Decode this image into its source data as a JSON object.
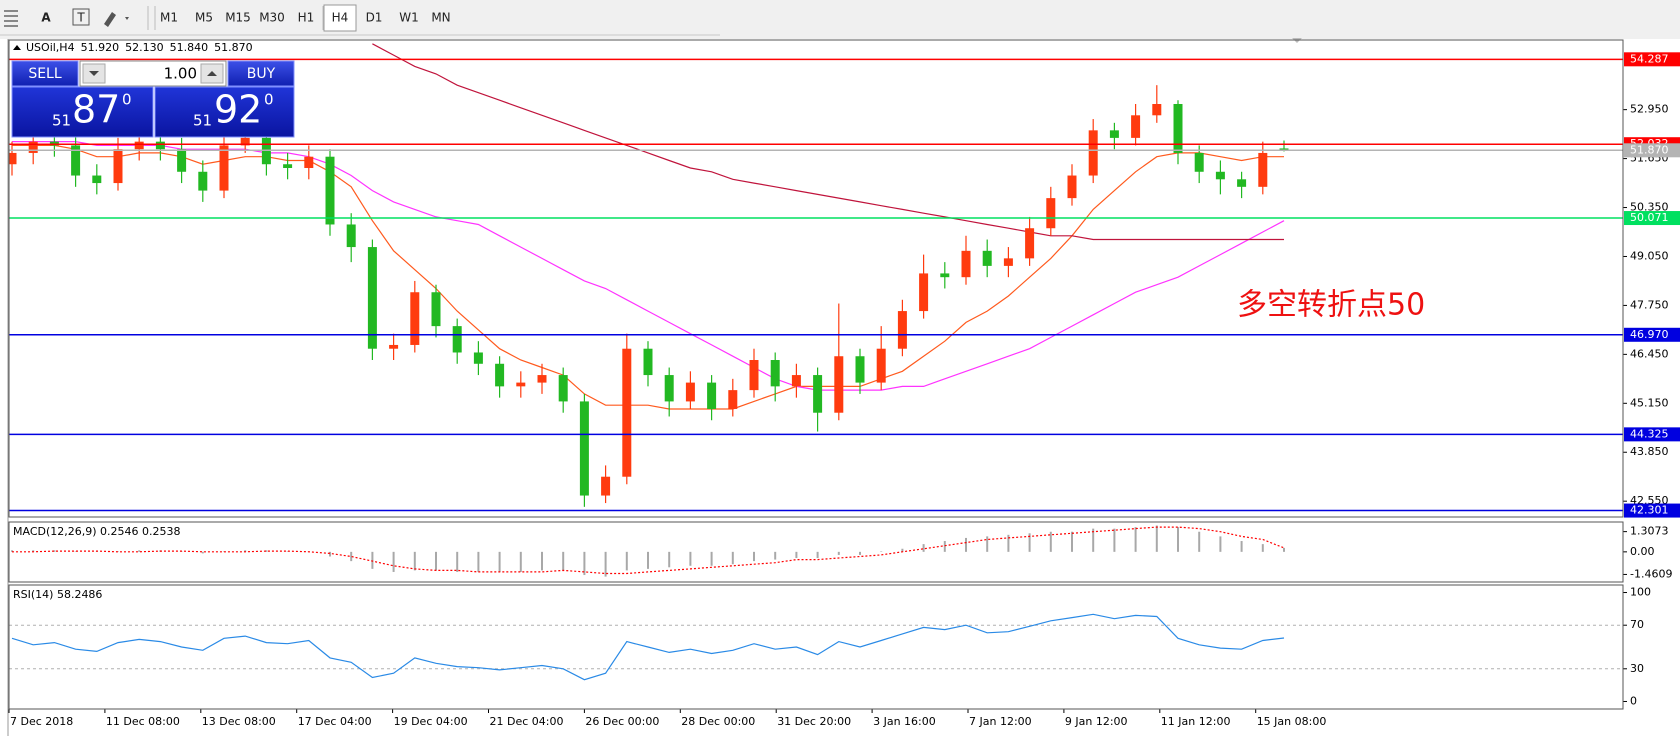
{
  "toolbar": {
    "font_tool": "A",
    "timeframes": [
      "M1",
      "M5",
      "M15",
      "M30",
      "H1",
      "H4",
      "D1",
      "W1",
      "MN"
    ],
    "active": "H4"
  },
  "trade_panel": {
    "sell_label": "SELL",
    "buy_label": "BUY",
    "lot": "1.00",
    "sell_price": [
      "51",
      "87",
      "0"
    ],
    "buy_price": [
      "51",
      "92",
      "0"
    ]
  },
  "chart_data": [
    {
      "type": "candlestick",
      "title": "USOil,H4",
      "header_values": [
        "51.920",
        "52.130",
        "51.840",
        "51.870"
      ],
      "up_color": "#ff3b0f",
      "down_color": "#22b822",
      "open": [
        51.5,
        51.8,
        52.1,
        52.0,
        51.2,
        51.0,
        51.9,
        52.1,
        51.9,
        51.3,
        50.8,
        52.0,
        52.2,
        51.5,
        51.4,
        51.7,
        49.9,
        49.3,
        46.6,
        46.7,
        48.1,
        47.2,
        46.5,
        46.2,
        45.6,
        45.7,
        45.9,
        45.2,
        42.7,
        43.2,
        46.6,
        45.9,
        45.2,
        45.7,
        45.0,
        45.5,
        46.3,
        45.6,
        45.9,
        44.9,
        46.4,
        45.7,
        46.6,
        47.6,
        48.6,
        48.5,
        49.2,
        48.8,
        49.0,
        49.8,
        50.6,
        51.2,
        52.4,
        52.2,
        52.8,
        53.1,
        51.8,
        51.3,
        51.1,
        50.9,
        51.92
      ],
      "high": [
        52.1,
        52.4,
        52.3,
        52.3,
        51.5,
        52.2,
        52.4,
        52.4,
        52.2,
        51.6,
        52.3,
        52.5,
        52.4,
        51.8,
        52.0,
        51.9,
        50.2,
        49.5,
        47.0,
        48.4,
        48.3,
        47.4,
        46.8,
        46.4,
        46.0,
        46.2,
        46.1,
        45.4,
        43.5,
        47.0,
        46.8,
        46.1,
        46.0,
        45.9,
        45.8,
        46.6,
        46.5,
        46.2,
        46.1,
        47.8,
        46.6,
        47.2,
        47.9,
        49.1,
        48.9,
        49.6,
        49.5,
        49.3,
        50.1,
        50.9,
        51.5,
        52.7,
        52.6,
        53.1,
        53.6,
        53.2,
        52.0,
        51.6,
        51.3,
        52.1,
        52.13
      ],
      "low": [
        51.2,
        51.5,
        51.7,
        50.9,
        50.7,
        50.8,
        51.6,
        51.6,
        51.0,
        50.5,
        50.6,
        51.8,
        51.2,
        51.1,
        51.1,
        49.6,
        48.9,
        46.3,
        46.3,
        46.5,
        46.9,
        46.2,
        45.9,
        45.3,
        45.3,
        45.4,
        44.9,
        42.4,
        42.5,
        43.0,
        45.6,
        44.8,
        45.0,
        44.7,
        44.8,
        45.3,
        45.2,
        45.3,
        44.4,
        44.7,
        45.4,
        45.5,
        46.4,
        47.4,
        48.2,
        48.3,
        48.5,
        48.5,
        48.8,
        49.6,
        50.4,
        51.0,
        51.9,
        52.0,
        52.6,
        51.5,
        51.0,
        50.7,
        50.6,
        50.7,
        51.84
      ],
      "close": [
        51.8,
        52.1,
        52.0,
        51.2,
        51.0,
        51.9,
        52.1,
        51.9,
        51.3,
        50.8,
        52.0,
        52.2,
        51.5,
        51.4,
        51.7,
        49.9,
        49.3,
        46.6,
        46.7,
        48.1,
        47.2,
        46.5,
        46.2,
        45.6,
        45.7,
        45.9,
        45.2,
        42.7,
        43.2,
        46.6,
        45.9,
        45.2,
        45.7,
        45.0,
        45.5,
        46.3,
        45.6,
        45.9,
        44.9,
        46.4,
        45.7,
        46.6,
        47.6,
        48.6,
        48.5,
        49.2,
        48.8,
        49.0,
        49.8,
        50.6,
        51.2,
        52.4,
        52.2,
        52.8,
        53.1,
        51.8,
        51.3,
        51.1,
        50.9,
        51.8,
        51.87
      ],
      "series": [
        {
          "color": "#ff5a1e",
          "values": [
            52.0,
            52.0,
            52.0,
            51.9,
            51.7,
            51.7,
            51.8,
            51.8,
            51.7,
            51.5,
            51.6,
            51.7,
            51.7,
            51.6,
            51.6,
            51.3,
            50.9,
            50.0,
            49.2,
            48.7,
            48.2,
            47.6,
            47.1,
            46.6,
            46.3,
            46.1,
            45.9,
            45.4,
            45.1,
            45.1,
            45.1,
            45.0,
            45.0,
            45.0,
            45.0,
            45.2,
            45.4,
            45.6,
            45.6,
            45.6,
            45.6,
            45.8,
            46.0,
            46.4,
            46.8,
            47.3,
            47.6,
            48.0,
            48.5,
            49.0,
            49.6,
            50.3,
            50.8,
            51.3,
            51.7,
            51.8,
            51.8,
            51.7,
            51.6,
            51.7,
            51.7
          ]
        },
        {
          "color": "#ff33ff",
          "values": [
            52.1,
            52.1,
            52.1,
            52.1,
            52.0,
            52.0,
            52.0,
            52.0,
            51.9,
            51.9,
            51.9,
            51.9,
            51.8,
            51.8,
            51.7,
            51.5,
            51.2,
            50.8,
            50.5,
            50.3,
            50.1,
            50.0,
            49.9,
            49.6,
            49.3,
            49.0,
            48.7,
            48.4,
            48.2,
            47.9,
            47.6,
            47.3,
            47.0,
            46.7,
            46.4,
            46.1,
            45.8,
            45.6,
            45.5,
            45.5,
            45.5,
            45.5,
            45.6,
            45.6,
            45.8,
            46.0,
            46.2,
            46.4,
            46.6,
            46.9,
            47.2,
            47.5,
            47.8,
            48.1,
            48.3,
            48.5,
            48.8,
            49.1,
            49.4,
            49.7,
            50.0
          ]
        },
        {
          "color": "#c0143c",
          "values": [
            null,
            null,
            null,
            null,
            null,
            null,
            null,
            null,
            null,
            null,
            null,
            null,
            null,
            null,
            null,
            null,
            null,
            54.7,
            54.4,
            54.1,
            53.9,
            53.6,
            53.4,
            53.2,
            53.0,
            52.8,
            52.6,
            52.4,
            52.2,
            52.0,
            51.8,
            51.6,
            51.4,
            51.3,
            51.1,
            51.0,
            50.9,
            50.8,
            50.7,
            50.6,
            50.5,
            50.4,
            50.3,
            50.2,
            50.1,
            50.0,
            49.9,
            49.8,
            49.7,
            49.6,
            49.6,
            49.5,
            49.5,
            49.5,
            49.5,
            49.5,
            49.5,
            49.5,
            49.5,
            49.5,
            49.5
          ]
        }
      ],
      "levels": [
        {
          "value": 54.287,
          "color": "#ff0000"
        },
        {
          "value": 52.032,
          "color": "#ff0000"
        },
        {
          "value": 51.87,
          "label": "51.870",
          "color": "#b4b4b4"
        },
        {
          "value": 50.071,
          "color": "#00e060"
        },
        {
          "value": 46.97,
          "label": "46.970",
          "color": "#0000e0"
        },
        {
          "value": 44.325,
          "color": "#0000e0"
        },
        {
          "value": 42.301,
          "color": "#0000e0"
        }
      ],
      "ylim": [
        42.13,
        54.8
      ],
      "yticks": [
        {
          "value": 52.95,
          "label": "52.950"
        },
        {
          "value": 51.65,
          "label": "51.650"
        },
        {
          "value": 50.35,
          "label": "50.350"
        },
        {
          "value": 49.05,
          "label": "49.050"
        },
        {
          "value": 47.75,
          "label": "47.750"
        },
        {
          "value": 46.45,
          "label": "46.450"
        },
        {
          "value": 45.15,
          "label": "45.150"
        },
        {
          "value": 43.85,
          "label": "43.850"
        },
        {
          "value": 42.55,
          "label": "42.550"
        }
      ],
      "annotation": "多空转折点50",
      "time_labels": [
        "7 Dec 2018",
        "11 Dec 08:00",
        "13 Dec 08:00",
        "17 Dec 04:00",
        "19 Dec 04:00",
        "21 Dec 04:00",
        "26 Dec 00:00",
        "28 Dec 00:00",
        "31 Dec 20:00",
        "3 Jan 16:00",
        "7 Jan 12:00",
        "9 Jan 12:00",
        "11 Jan 12:00",
        "15 Jan 08:00"
      ]
    },
    {
      "type": "macd",
      "title": "MACD(12,26,9) 0.2546 0.2538",
      "series": [
        {
          "color": "#a8a8a8",
          "values": [
            0.1,
            0.1,
            0.1,
            0.0,
            0.0,
            0.0,
            0.1,
            0.1,
            0.0,
            -0.1,
            0.0,
            0.1,
            0.1,
            0.0,
            0.0,
            -0.3,
            -0.6,
            -1.1,
            -1.3,
            -1.2,
            -1.2,
            -1.3,
            -1.3,
            -1.3,
            -1.3,
            -1.2,
            -1.2,
            -1.5,
            -1.6,
            -1.2,
            -1.1,
            -1.0,
            -0.9,
            -0.9,
            -0.8,
            -0.6,
            -0.5,
            -0.4,
            -0.4,
            -0.2,
            -0.2,
            0.0,
            0.2,
            0.5,
            0.7,
            0.9,
            1.0,
            1.1,
            1.2,
            1.3,
            1.3,
            1.5,
            1.5,
            1.6,
            1.7,
            1.6,
            1.3,
            1.0,
            0.7,
            0.5,
            0.2546
          ]
        },
        {
          "color": "#ff0000",
          "values": [
            0.0,
            0.0,
            0.05,
            0.05,
            0.05,
            0.0,
            0.0,
            0.05,
            0.05,
            0.0,
            0.0,
            0.0,
            0.05,
            0.05,
            0.0,
            -0.1,
            -0.3,
            -0.6,
            -0.9,
            -1.1,
            -1.2,
            -1.2,
            -1.3,
            -1.3,
            -1.3,
            -1.3,
            -1.2,
            -1.3,
            -1.4,
            -1.4,
            -1.3,
            -1.2,
            -1.1,
            -1.0,
            -0.9,
            -0.8,
            -0.7,
            -0.5,
            -0.5,
            -0.4,
            -0.3,
            -0.2,
            0.0,
            0.2,
            0.4,
            0.6,
            0.8,
            0.9,
            1.0,
            1.1,
            1.2,
            1.3,
            1.4,
            1.5,
            1.6,
            1.6,
            1.5,
            1.3,
            1.0,
            0.8,
            0.2538
          ]
        }
      ],
      "ylim": [
        -1.95,
        1.93
      ],
      "yticks": [
        1.3073,
        {
          "value": 0,
          "label": "0.00"
        },
        -1.4609
      ]
    },
    {
      "type": "rsi",
      "title": "RSI(14) 58.2486",
      "color": "#2a8ae6",
      "values": [
        58,
        52,
        54,
        48,
        46,
        54,
        57,
        55,
        50,
        47,
        58,
        60,
        54,
        53,
        56,
        40,
        36,
        22,
        26,
        40,
        35,
        32,
        31,
        29,
        31,
        33,
        30,
        20,
        26,
        55,
        50,
        45,
        48,
        44,
        47,
        53,
        48,
        50,
        43,
        55,
        50,
        56,
        62,
        68,
        66,
        70,
        63,
        64,
        69,
        74,
        77,
        80,
        76,
        79,
        78,
        58,
        52,
        49,
        48,
        56,
        58.2486
      ],
      "levels": [
        70,
        30
      ],
      "ylim": [
        -6.9,
        106.9
      ],
      "yticks": [
        100,
        70,
        30,
        0
      ]
    }
  ]
}
